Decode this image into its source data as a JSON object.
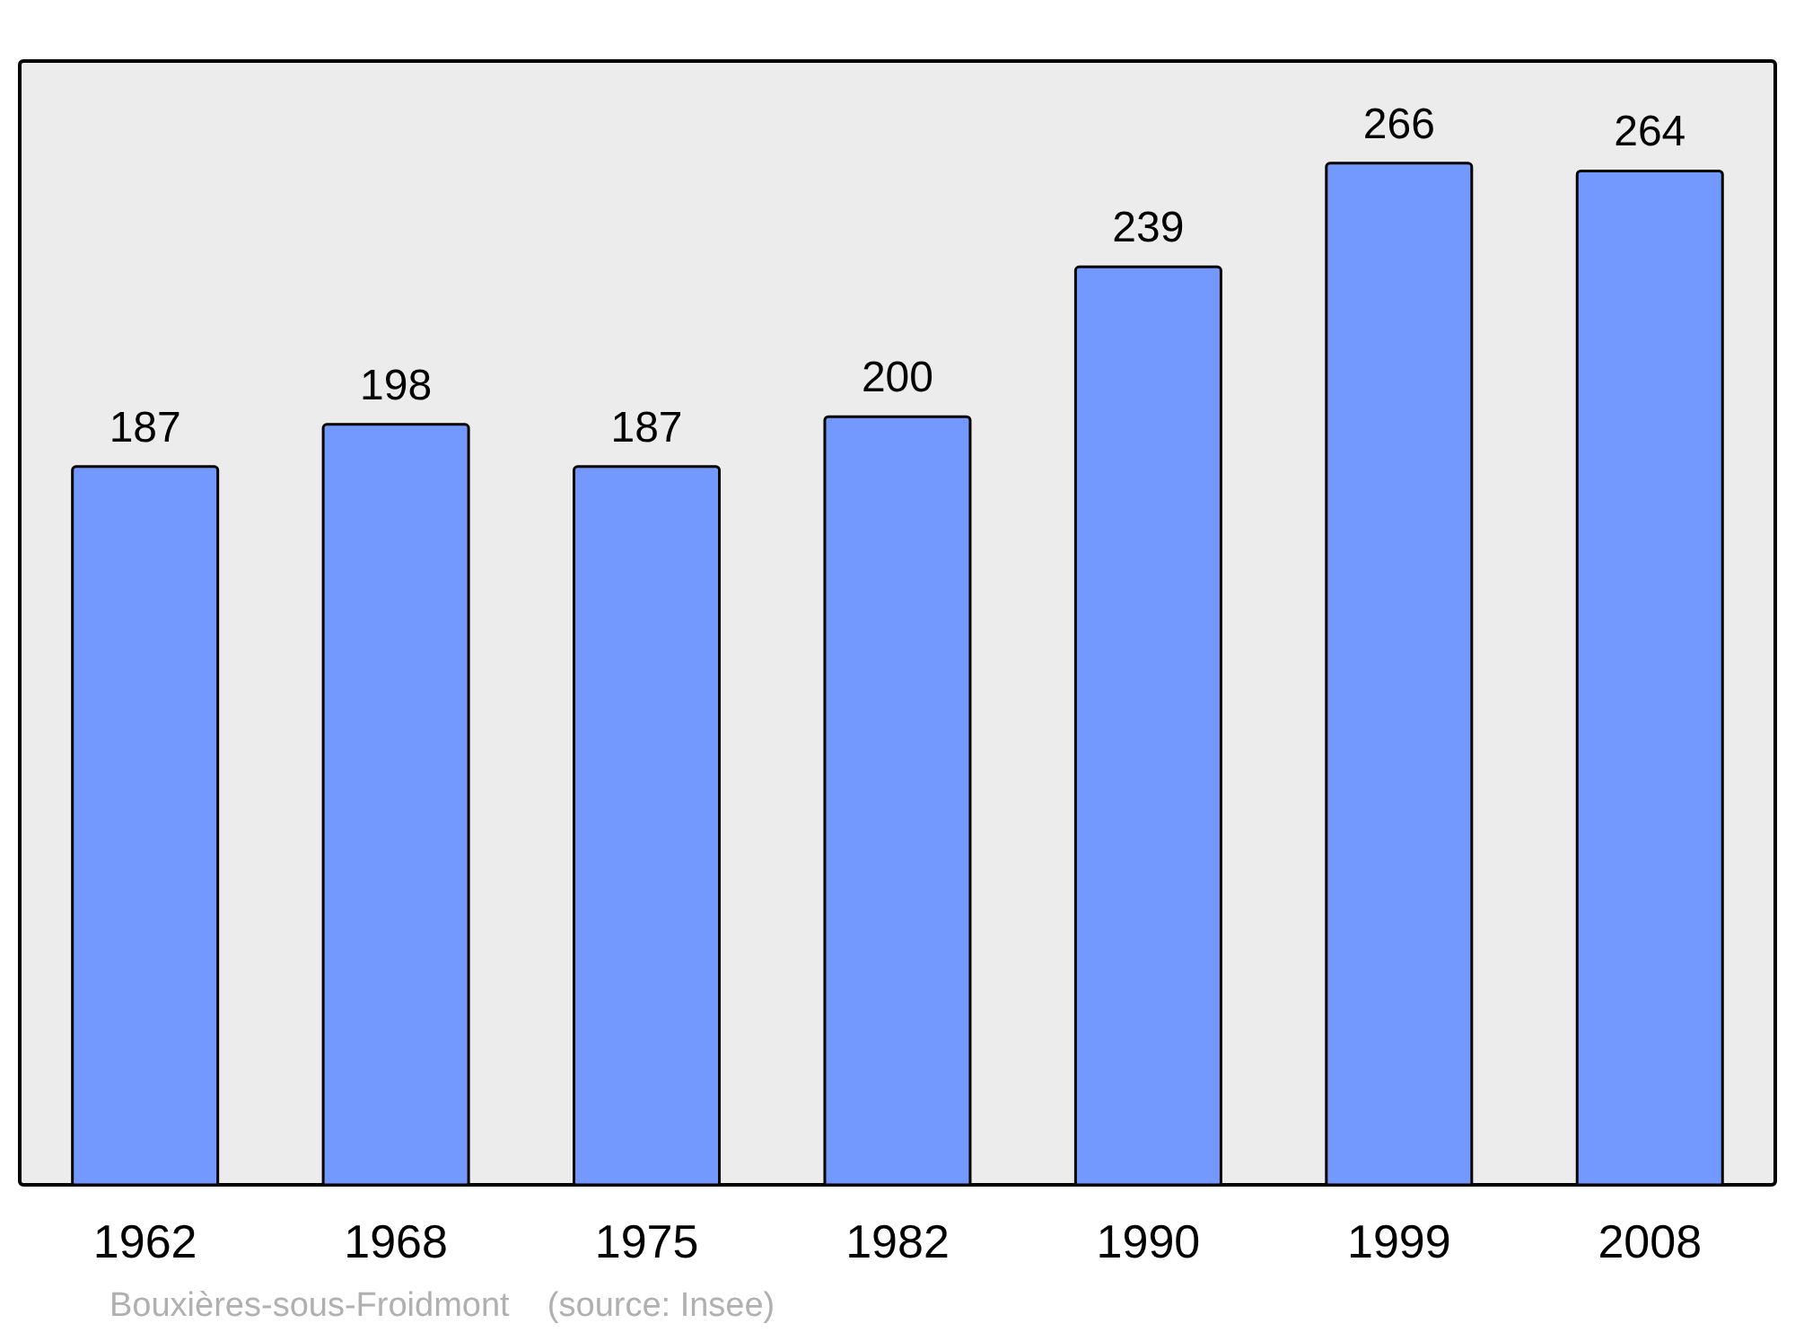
{
  "chart_data": {
    "type": "bar",
    "categories": [
      "1962",
      "1968",
      "1975",
      "1982",
      "1990",
      "1999",
      "2008"
    ],
    "values": [
      187,
      198,
      187,
      200,
      239,
      266,
      264
    ],
    "color": "#7399ff",
    "data_labels": true,
    "grid": false,
    "legend": false,
    "annotations": [
      "Bouxières-sous-Froidmont    (source: Insee)"
    ]
  }
}
